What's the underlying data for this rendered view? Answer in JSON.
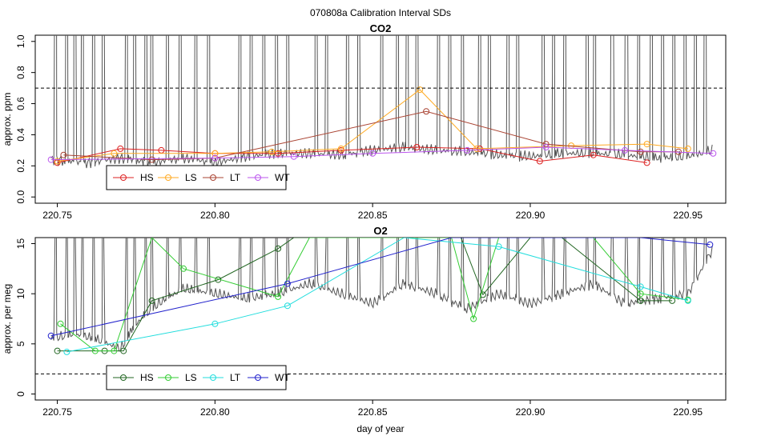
{
  "page_title": "070808a   Calibration Interval SDs",
  "chart_data": [
    {
      "type": "line",
      "title": "CO2",
      "xlabel": "",
      "ylabel": "approx. ppm",
      "xlim": [
        220.743,
        220.962
      ],
      "ylim": [
        -0.04,
        1.04
      ],
      "x_ticks": [
        220.75,
        220.8,
        220.85,
        220.9,
        220.95
      ],
      "x_tick_labels": [
        "220.75",
        "220.80",
        "220.85",
        "220.90",
        "220.95"
      ],
      "y_ticks": [
        0.0,
        0.2,
        0.4,
        0.6,
        0.8,
        1.0
      ],
      "y_tick_labels": [
        "0.0",
        "0.2",
        "0.4",
        "0.6",
        "0.8",
        "1.0"
      ],
      "threshold": 0.7,
      "raw_trace": {
        "color": "#555555",
        "baseline": [
          [
            220.748,
            0.24
          ],
          [
            220.76,
            0.22
          ],
          [
            220.77,
            0.25
          ],
          [
            220.78,
            0.22
          ],
          [
            220.79,
            0.25
          ],
          [
            220.8,
            0.22
          ],
          [
            220.81,
            0.26
          ],
          [
            220.82,
            0.28
          ],
          [
            220.83,
            0.28
          ],
          [
            220.84,
            0.27
          ],
          [
            220.85,
            0.3
          ],
          [
            220.86,
            0.32
          ],
          [
            220.87,
            0.3
          ],
          [
            220.88,
            0.29
          ],
          [
            220.89,
            0.27
          ],
          [
            220.9,
            0.26
          ],
          [
            220.91,
            0.28
          ],
          [
            220.92,
            0.28
          ],
          [
            220.93,
            0.27
          ],
          [
            220.94,
            0.25
          ],
          [
            220.95,
            0.26
          ],
          [
            220.958,
            0.3
          ]
        ],
        "spikes": [
          220.7495,
          220.753,
          220.7555,
          220.758,
          220.7615,
          220.7645,
          220.772,
          220.7745,
          220.778,
          220.78,
          220.785,
          220.789,
          220.794,
          220.798,
          220.808,
          220.8115,
          220.8155,
          220.8195,
          220.823,
          220.832,
          220.8355,
          220.842,
          220.8455,
          220.853,
          220.858,
          220.861,
          220.864,
          220.871,
          220.8745,
          220.8785,
          220.884,
          220.887,
          220.893,
          220.896,
          220.904,
          220.9075,
          220.911,
          220.918,
          220.9205,
          220.926,
          220.9305,
          220.9345,
          220.9385,
          220.942,
          220.9455,
          220.949,
          220.9525,
          220.9555
        ],
        "spike_top": 1.04
      },
      "series": [
        {
          "name": "HS",
          "color": "#dd2222",
          "points": [
            [
              220.75,
              0.22
            ],
            [
              220.77,
              0.31
            ],
            [
              220.783,
              0.3
            ],
            [
              220.8,
              0.28
            ],
            [
              220.82,
              0.28
            ],
            [
              220.84,
              0.3
            ],
            [
              220.864,
              0.32
            ],
            [
              220.884,
              0.31
            ],
            [
              220.903,
              0.23
            ],
            [
              220.92,
              0.27
            ],
            [
              220.937,
              0.22
            ]
          ]
        },
        {
          "name": "LS",
          "color": "#ffaa22",
          "points": [
            [
              220.75,
              0.23
            ],
            [
              220.768,
              0.28
            ],
            [
              220.8,
              0.28
            ],
            [
              220.818,
              0.29
            ],
            [
              220.84,
              0.31
            ],
            [
              220.865,
              0.69
            ],
            [
              220.883,
              0.31
            ],
            [
              220.913,
              0.33
            ],
            [
              220.937,
              0.34
            ],
            [
              220.95,
              0.31
            ]
          ]
        },
        {
          "name": "LT",
          "color": "#aa4433",
          "points": [
            [
              220.752,
              0.27
            ],
            [
              220.78,
              0.24
            ],
            [
              220.8,
              0.25
            ],
            [
              220.867,
              0.55
            ],
            [
              220.905,
              0.34
            ],
            [
              220.935,
              0.29
            ],
            [
              220.947,
              0.29
            ]
          ]
        },
        {
          "name": "WT",
          "color": "#bb55ee",
          "points": [
            [
              220.748,
              0.24
            ],
            [
              220.8,
              0.25
            ],
            [
              220.825,
              0.26
            ],
            [
              220.85,
              0.28
            ],
            [
              220.88,
              0.3
            ],
            [
              220.905,
              0.32
            ],
            [
              220.93,
              0.3
            ],
            [
              220.958,
              0.28
            ]
          ]
        }
      ],
      "legend": [
        "HS",
        "LS",
        "LT",
        "WT"
      ],
      "legend_position": "bottom-left"
    },
    {
      "type": "line",
      "title": "O2",
      "xlabel": "day of year",
      "ylabel": "approx. per meg",
      "xlim": [
        220.743,
        220.962
      ],
      "ylim": [
        -0.6,
        15.6
      ],
      "x_ticks": [
        220.75,
        220.8,
        220.85,
        220.9,
        220.95
      ],
      "x_tick_labels": [
        "220.75",
        "220.80",
        "220.85",
        "220.90",
        "220.95"
      ],
      "y_ticks": [
        0,
        5,
        10,
        15
      ],
      "y_tick_labels": [
        "0",
        "5",
        "10",
        "15"
      ],
      "threshold": 2,
      "raw_trace": {
        "color": "#555555",
        "baseline": [
          [
            220.748,
            5.5
          ],
          [
            220.755,
            6
          ],
          [
            220.762,
            5.5
          ],
          [
            220.77,
            4.5
          ],
          [
            220.775,
            7
          ],
          [
            220.782,
            9
          ],
          [
            220.79,
            10.5
          ],
          [
            220.8,
            10
          ],
          [
            220.81,
            9.5
          ],
          [
            220.82,
            10
          ],
          [
            220.83,
            11
          ],
          [
            220.84,
            10
          ],
          [
            220.85,
            9
          ],
          [
            220.86,
            11
          ],
          [
            220.87,
            10
          ],
          [
            220.88,
            8.5
          ],
          [
            220.89,
            10
          ],
          [
            220.9,
            9
          ],
          [
            220.91,
            10
          ],
          [
            220.92,
            11
          ],
          [
            220.93,
            9
          ],
          [
            220.94,
            9.5
          ],
          [
            220.95,
            10
          ],
          [
            220.958,
            14.5
          ]
        ],
        "spikes": [
          220.7495,
          220.753,
          220.7555,
          220.758,
          220.7615,
          220.7645,
          220.772,
          220.7745,
          220.778,
          220.78,
          220.785,
          220.789,
          220.794,
          220.798,
          220.808,
          220.8115,
          220.8155,
          220.8195,
          220.823,
          220.832,
          220.8355,
          220.842,
          220.8455,
          220.853,
          220.858,
          220.861,
          220.864,
          220.871,
          220.8745,
          220.8785,
          220.884,
          220.887,
          220.893,
          220.896,
          220.904,
          220.9075,
          220.911,
          220.918,
          220.9205,
          220.926,
          220.9305,
          220.9345,
          220.9385,
          220.942,
          220.9455,
          220.949,
          220.9525,
          220.9555
        ],
        "spike_top": 15.6
      },
      "series": [
        {
          "name": "HS",
          "color": "#226622",
          "points": [
            [
              220.75,
              4.3
            ],
            [
              220.765,
              4.3
            ],
            [
              220.771,
              4.3
            ],
            [
              220.78,
              9.3
            ],
            [
              220.801,
              11.4
            ],
            [
              220.82,
              14.5
            ],
            [
              220.825,
              15.6
            ],
            [
              220.878,
              15.6
            ],
            [
              220.885,
              9.9
            ],
            [
              220.9,
              15.6
            ],
            [
              220.91,
              15.6
            ],
            [
              220.935,
              9.3
            ],
            [
              220.945,
              9.3
            ]
          ]
        },
        {
          "name": "LS",
          "color": "#33cc33",
          "points": [
            [
              220.751,
              7
            ],
            [
              220.762,
              4.3
            ],
            [
              220.768,
              4.3
            ],
            [
              220.78,
              15.6
            ],
            [
              220.79,
              12.5
            ],
            [
              220.82,
              9.7
            ],
            [
              220.83,
              15.6
            ],
            [
              220.875,
              15.6
            ],
            [
              220.882,
              7.5
            ],
            [
              220.89,
              15.6
            ],
            [
              220.92,
              15.6
            ],
            [
              220.935,
              10
            ],
            [
              220.95,
              9.4
            ]
          ]
        },
        {
          "name": "LT",
          "color": "#22dddd",
          "points": [
            [
              220.753,
              4.2
            ],
            [
              220.8,
              7
            ],
            [
              220.823,
              8.8
            ],
            [
              220.86,
              15.6
            ],
            [
              220.89,
              14.7
            ],
            [
              220.935,
              10.7
            ],
            [
              220.95,
              9.3
            ]
          ]
        },
        {
          "name": "WT",
          "color": "#2222cc",
          "points": [
            [
              220.748,
              5.8
            ],
            [
              220.823,
              11
            ],
            [
              220.875,
              15.6
            ],
            [
              220.935,
              15.6
            ],
            [
              220.957,
              14.9
            ]
          ]
        }
      ],
      "legend": [
        "HS",
        "LS",
        "LT",
        "WT"
      ],
      "legend_position": "bottom-left"
    }
  ]
}
